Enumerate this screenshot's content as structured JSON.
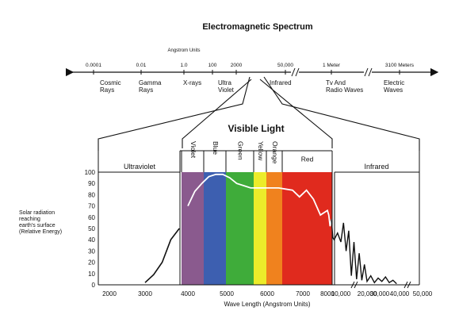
{
  "title": "Electromagnetic Spectrum",
  "units_label": "Angstrom Units",
  "top_ticks": [
    "0.0001",
    "0.01",
    "1.0",
    "100",
    "2000",
    "50,000",
    "1 Meter",
    "3100 Meters"
  ],
  "top_regions": [
    [
      "Cosmic",
      "Rays"
    ],
    [
      "Gamma",
      "Rays"
    ],
    [
      "X-rays"
    ],
    [
      "Ultra",
      "Violet"
    ],
    [
      "Infrared"
    ],
    [
      "Tv And",
      "Radio Waves"
    ],
    [
      "Electric",
      "Waves"
    ]
  ],
  "visible_light_title": "Visible Light",
  "section_labels": {
    "ultraviolet": "Ultraviolet",
    "infrared": "Infrared"
  },
  "bands": [
    {
      "name": "Violet",
      "color": "#8a5a8e"
    },
    {
      "name": "Blue",
      "color": "#3d5fb0"
    },
    {
      "name": "Green",
      "color": "#3fac3a"
    },
    {
      "name": "Yellow",
      "color": "#ecec2a"
    },
    {
      "name": "Orange",
      "color": "#f0821e"
    },
    {
      "name": "Red",
      "color": "#e02a1e"
    }
  ],
  "y_ticks": [
    "100",
    "90",
    "80",
    "70",
    "60",
    "50",
    "40",
    "30",
    "20",
    "10",
    "0"
  ],
  "y_axis_label": [
    "Solar radiation",
    "reaching",
    "earth's surface",
    "(Relative Energy)"
  ],
  "x_ticks": [
    "2000",
    "3000",
    "4000",
    "5000",
    "6000",
    "7000",
    "8000",
    "10,000",
    "20,000",
    "30,000",
    "40,000",
    "50,000"
  ],
  "x_axis_label": "Wave Length (Angstrom Units)",
  "chart_data": {
    "type": "line",
    "title": "",
    "xlabel": "Wave Length (Angstrom Units)",
    "ylabel": "Solar radiation reaching earth's surface (Relative Energy)",
    "ylim": [
      0,
      100
    ],
    "grid": false,
    "series": [
      {
        "values": [
          [
            3000,
            2
          ],
          [
            3200,
            9
          ],
          [
            3400,
            20
          ],
          [
            3600,
            40
          ],
          [
            3800,
            50
          ],
          [
            4000,
            70
          ],
          [
            4200,
            83
          ],
          [
            4400,
            90
          ],
          [
            4600,
            96
          ],
          [
            4800,
            98
          ],
          [
            5000,
            98
          ],
          [
            5200,
            95
          ],
          [
            5400,
            90
          ],
          [
            5600,
            88
          ],
          [
            5800,
            86
          ],
          [
            6000,
            86
          ],
          [
            6200,
            86
          ],
          [
            6400,
            86
          ],
          [
            6600,
            86
          ],
          [
            6800,
            85
          ],
          [
            7000,
            84
          ],
          [
            7200,
            78
          ],
          [
            7400,
            84
          ],
          [
            7600,
            76
          ],
          [
            7800,
            62
          ],
          [
            8000,
            66
          ],
          [
            8200,
            62
          ],
          [
            8400,
            52
          ],
          [
            8600,
            58
          ],
          [
            8800,
            42
          ],
          [
            9000,
            40
          ],
          [
            9500,
            46
          ],
          [
            10000,
            38
          ],
          [
            11000,
            55
          ],
          [
            12000,
            30
          ],
          [
            13000,
            48
          ],
          [
            14000,
            8
          ],
          [
            15000,
            38
          ],
          [
            16000,
            5
          ],
          [
            17000,
            28
          ],
          [
            18000,
            4
          ],
          [
            19000,
            18
          ],
          [
            20000,
            3
          ],
          [
            22000,
            8
          ],
          [
            24000,
            2
          ],
          [
            26000,
            6
          ],
          [
            28000,
            3
          ],
          [
            30000,
            7
          ],
          [
            32000,
            2
          ],
          [
            34000,
            4
          ],
          [
            36000,
            1
          ]
        ]
      }
    ]
  }
}
